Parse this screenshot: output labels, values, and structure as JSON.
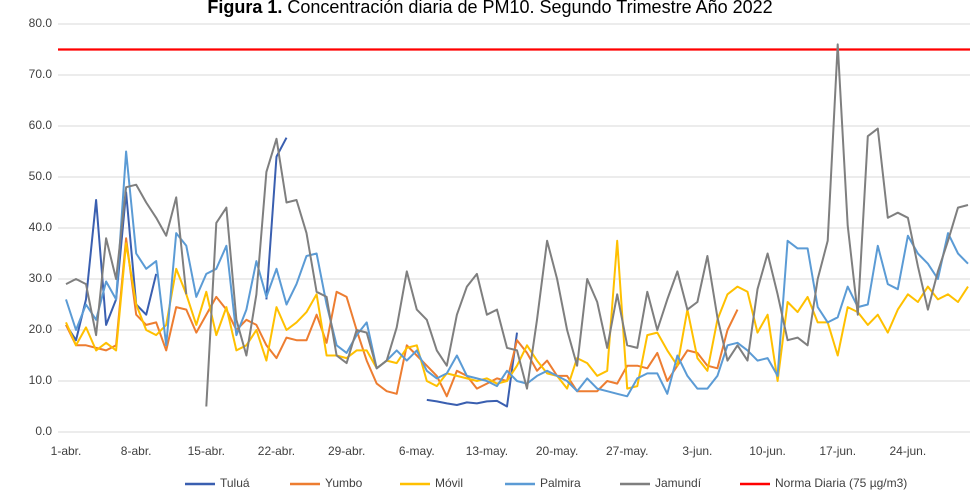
{
  "chart_data": {
    "type": "line",
    "title_prefix": "Figura 1.",
    "title": "Concentración diaria de PM10. Segundo Trimestre Año 2022",
    "categories": [
      "1-abr.",
      null,
      null,
      null,
      null,
      null,
      null,
      "8-abr.",
      null,
      null,
      null,
      null,
      null,
      null,
      "15-abr.",
      null,
      null,
      null,
      null,
      null,
      null,
      "22-abr.",
      null,
      null,
      null,
      null,
      null,
      null,
      "29-abr.",
      null,
      null,
      null,
      null,
      null,
      null,
      "6-may.",
      null,
      null,
      null,
      null,
      null,
      null,
      "13-may.",
      null,
      null,
      null,
      null,
      null,
      null,
      "20-may.",
      null,
      null,
      null,
      null,
      null,
      null,
      "27-may.",
      null,
      null,
      null,
      null,
      null,
      null,
      "3-jun.",
      null,
      null,
      null,
      null,
      null,
      null,
      "10-jun.",
      null,
      null,
      null,
      null,
      null,
      null,
      "17-jun.",
      null,
      null,
      null,
      null,
      null,
      null,
      "24-jun.",
      null,
      null,
      null,
      null,
      null,
      null
    ],
    "series": [
      {
        "name": "Tuluá",
        "color": "#3a5fb0",
        "values": [
          21,
          18,
          26,
          45.5,
          21,
          26,
          47,
          25,
          23,
          31,
          null,
          null,
          null,
          null,
          null,
          null,
          null,
          null,
          null,
          null,
          26,
          54,
          57.7,
          null,
          null,
          null,
          null,
          null,
          null,
          null,
          null,
          null,
          null,
          null,
          null,
          null,
          6.3,
          6.0,
          5.6,
          5.3,
          5.8,
          5.6,
          6.0,
          6.1,
          5.0,
          19.5,
          null,
          null,
          null,
          null,
          null,
          null,
          null,
          null,
          null,
          null,
          null,
          null,
          null,
          null,
          null,
          null,
          null,
          null,
          null,
          null,
          null,
          null,
          null,
          null,
          null,
          null,
          null,
          null,
          null,
          null,
          null,
          null,
          null,
          null,
          null,
          null,
          null,
          null,
          null,
          null,
          null,
          null,
          null,
          null,
          null
        ]
      },
      {
        "name": "Yumbo",
        "color": "#ed7d31",
        "values": [
          21,
          17,
          17,
          16.5,
          16,
          17,
          38,
          23,
          21,
          21.5,
          16,
          24.5,
          24,
          19.5,
          23,
          26.5,
          24,
          20,
          22,
          21,
          17,
          14.5,
          18.5,
          18,
          18,
          23,
          17.5,
          27.5,
          26.5,
          20,
          14,
          9.5,
          8,
          7.5,
          17,
          15,
          13,
          11,
          7,
          12,
          11,
          8.5,
          9.5,
          10.5,
          10,
          18,
          15.5,
          12,
          14,
          11,
          11,
          8,
          8,
          8,
          10,
          9.5,
          13,
          13,
          12.5,
          15.5,
          10,
          13,
          16,
          15.5,
          13,
          12.5,
          20,
          24,
          null,
          null,
          null,
          null,
          null,
          null,
          null,
          null,
          null,
          null,
          null,
          null,
          null,
          null,
          null,
          null,
          null,
          null,
          null,
          null,
          null,
          null,
          null
        ]
      },
      {
        "name": "Móvil",
        "color": "#ffc000",
        "values": [
          21.5,
          17,
          20.5,
          16,
          17.5,
          16,
          37,
          25,
          20,
          19,
          21,
          32,
          27,
          21,
          27.5,
          19,
          24.5,
          16,
          17,
          20,
          14,
          24.5,
          20,
          21.5,
          23.5,
          27,
          15,
          15,
          14.5,
          16,
          16,
          12.5,
          14,
          13.5,
          16.5,
          17,
          10,
          9,
          11.5,
          11,
          10.5,
          10,
          10.5,
          9.5,
          10,
          13,
          17,
          14,
          11.5,
          11,
          8.5,
          14.5,
          13.5,
          11,
          12,
          37.5,
          8.5,
          9,
          19,
          19.5,
          16,
          13,
          24,
          14.5,
          12,
          22,
          27,
          28.5,
          27.5,
          19.5,
          23,
          10,
          25.5,
          23.5,
          26.5,
          21.5,
          21.5,
          15,
          24.5,
          23.5,
          21,
          23,
          19.5,
          24,
          27,
          25.5,
          28.5,
          26,
          27,
          25.5,
          28.5
        ]
      },
      {
        "name": "Palmira",
        "color": "#5b9bd5",
        "values": [
          26,
          20,
          25,
          22,
          29.5,
          26,
          55,
          35,
          32,
          33.5,
          17,
          39,
          36.5,
          26.5,
          31,
          32,
          36.5,
          19,
          24,
          33.5,
          26.5,
          32,
          25,
          29,
          34.5,
          35,
          25,
          17,
          15.5,
          19,
          21.5,
          12.5,
          14,
          16,
          14,
          16,
          12,
          10.5,
          11.5,
          15,
          11,
          10.5,
          10,
          9,
          12,
          10,
          9.5,
          11,
          12,
          11,
          10,
          8,
          10.5,
          8.5,
          8,
          7.5,
          7,
          10.5,
          11.5,
          11.5,
          7.5,
          15,
          11,
          8.5,
          8.5,
          11,
          17,
          17.5,
          16,
          14,
          14.5,
          11,
          37.5,
          36,
          36,
          24.5,
          21.5,
          22.5,
          28.5,
          24.5,
          25,
          36.5,
          29,
          28,
          38.5,
          35,
          33,
          30,
          39,
          35,
          33
        ]
      },
      {
        "name": "Jamundí",
        "color": "#7f7f7f",
        "values": [
          29,
          30,
          29,
          19,
          38,
          30,
          48,
          48.5,
          45,
          42,
          38.5,
          46,
          27,
          null,
          5,
          41,
          44,
          22,
          15,
          27,
          51,
          57.5,
          45,
          45.5,
          39,
          27.5,
          26.5,
          15,
          13.5,
          20,
          19.5,
          12.5,
          14,
          20.5,
          31.5,
          24,
          22,
          16,
          13,
          23,
          28.5,
          31,
          23,
          24,
          16.5,
          16,
          8.5,
          22,
          37.5,
          30,
          20,
          13,
          30,
          25.5,
          16.5,
          27,
          17,
          16.5,
          27.5,
          20,
          26,
          31.5,
          24,
          25.5,
          34.5,
          22.5,
          14,
          17,
          14,
          28,
          35,
          27,
          18,
          18.5,
          17,
          30,
          37.5,
          76,
          40.5,
          23,
          58,
          59.5,
          42,
          43,
          42,
          32.5,
          24,
          31.5,
          37.5,
          44,
          44.5
        ]
      }
    ],
    "reference_line": {
      "name": "Norma Diaria (75 µg/m3)",
      "color": "#ff0000",
      "value": 75
    },
    "ylim": [
      0,
      80
    ],
    "yticks": [
      {
        "value": 0,
        "label": "0.0"
      },
      {
        "value": 10,
        "label": "10.0"
      },
      {
        "value": 20,
        "label": "20.0"
      },
      {
        "value": 30,
        "label": "30.0"
      },
      {
        "value": 40,
        "label": "40.0"
      },
      {
        "value": 50,
        "label": "50.0"
      },
      {
        "value": 60,
        "label": "60.0"
      },
      {
        "value": 70,
        "label": "70.0"
      },
      {
        "value": 80,
        "label": "80.0"
      }
    ],
    "grid": true
  }
}
